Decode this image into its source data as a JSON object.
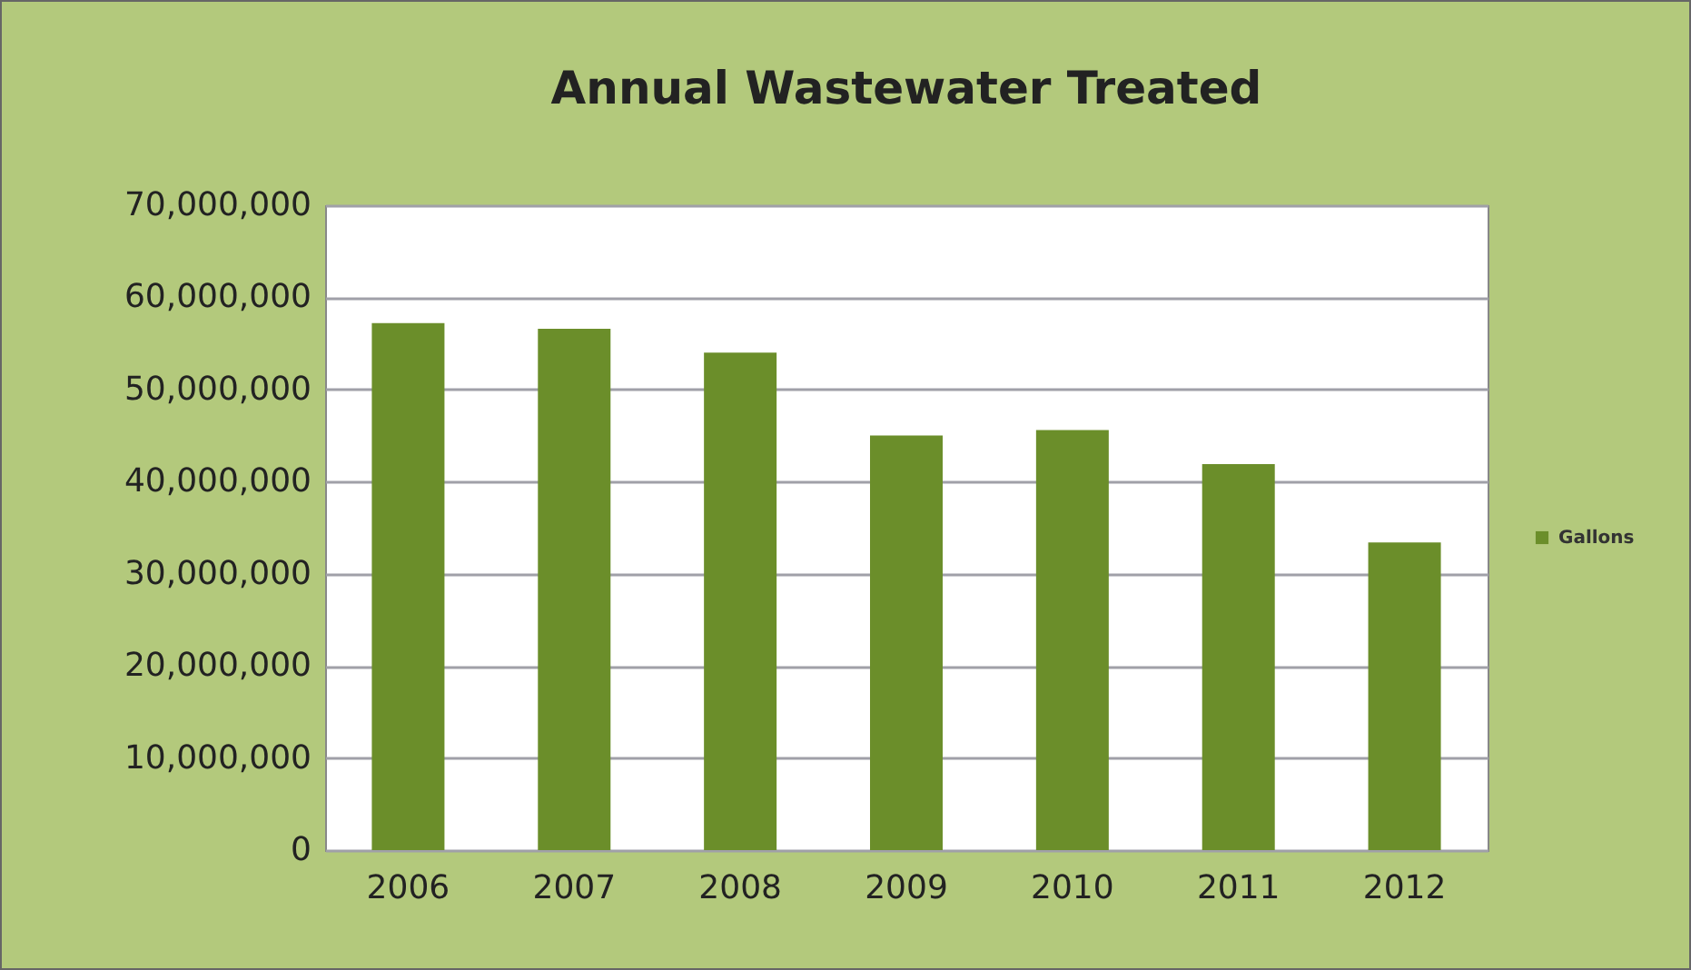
{
  "chart_data": {
    "type": "bar",
    "title": "Annual Wastewater Treated",
    "categories": [
      "2006",
      "2007",
      "2008",
      "2009",
      "2010",
      "2011",
      "2012"
    ],
    "series": [
      {
        "name": "Gallons",
        "color": "#6b8e2a",
        "values": [
          57200000,
          56600000,
          54000000,
          45000000,
          45600000,
          41900000,
          33400000
        ]
      }
    ],
    "ylim": [
      0,
      70000000
    ],
    "yticks": [
      {
        "value": 0,
        "label": "0"
      },
      {
        "value": 10000000,
        "label": "10,000,000"
      },
      {
        "value": 20000000,
        "label": "20,000,000"
      },
      {
        "value": 30000000,
        "label": "30,000,000"
      },
      {
        "value": 40000000,
        "label": "40,000,000"
      },
      {
        "value": 50000000,
        "label": "50,000,000"
      },
      {
        "value": 60000000,
        "label": "60,000,000"
      },
      {
        "value": 70000000,
        "label": "70,000,000"
      }
    ],
    "grid": "y",
    "legend": "right"
  }
}
